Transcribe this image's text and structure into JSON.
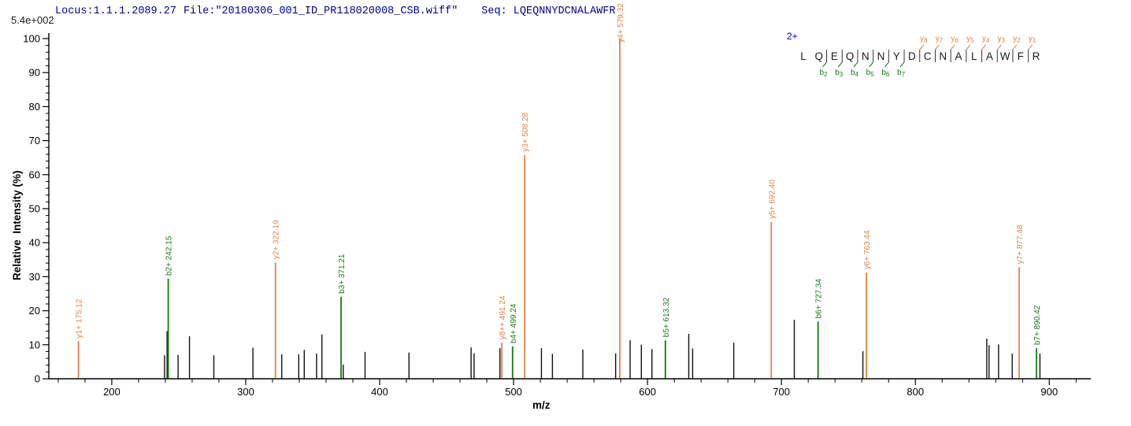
{
  "header": {
    "locus": "Locus:1.1.1.2089.27",
    "file": "File:\"20180306_001_ID_PR118020008_CSB.wiff\"",
    "seq": "Seq: LQEQNNYDCNALAWFR"
  },
  "chart_data": {
    "type": "bar",
    "subtype": "ms2-fragment-spectrum",
    "title": "",
    "xlabel": "m/z",
    "ylabel": "Relative  Intensity (%)",
    "y_scale_note": "5.4e+002",
    "precursor_charge": "2+",
    "x_range": [
      153,
      931
    ],
    "y_range": [
      0,
      100
    ],
    "x_ticks": [
      200,
      300,
      400,
      500,
      600,
      700,
      800,
      900
    ],
    "x_minor_step": 20,
    "x_minor_range": [
      160,
      920
    ],
    "y_ticks": [
      0,
      10,
      20,
      30,
      40,
      50,
      60,
      70,
      80,
      90,
      100
    ],
    "y_minor_step": 2,
    "legend_position": "none",
    "grid": false,
    "colors": {
      "y_ion": "#DE8244",
      "b_ion": "#107C10",
      "unassigned": "#111111",
      "axis": "#000000",
      "header_text": "#00008B",
      "charge_text": "#0000CD",
      "residue_text": "#1a1a1a"
    },
    "peaks": [
      {
        "mz": 175.12,
        "intensity": 11.0,
        "series": "y",
        "label": "y1+ 175.12"
      },
      {
        "mz": 239.4,
        "intensity": 6.9,
        "series": "unassigned",
        "label": null
      },
      {
        "mz": 241.3,
        "intensity": 14.0,
        "series": "unassigned",
        "label": null
      },
      {
        "mz": 242.15,
        "intensity": 29.4,
        "series": "b",
        "label": "b2+ 242.15"
      },
      {
        "mz": 249.5,
        "intensity": 7.0,
        "series": "unassigned",
        "label": null
      },
      {
        "mz": 258.0,
        "intensity": 12.5,
        "series": "unassigned",
        "label": null
      },
      {
        "mz": 276.2,
        "intensity": 6.9,
        "series": "unassigned",
        "label": null
      },
      {
        "mz": 305.4,
        "intensity": 9.1,
        "series": "unassigned",
        "label": null
      },
      {
        "mz": 322.19,
        "intensity": 34.2,
        "series": "y",
        "label": "y2+ 322.19"
      },
      {
        "mz": 326.9,
        "intensity": 7.2,
        "series": "unassigned",
        "label": null
      },
      {
        "mz": 339.6,
        "intensity": 7.2,
        "series": "unassigned",
        "label": null
      },
      {
        "mz": 343.7,
        "intensity": 8.5,
        "series": "unassigned",
        "label": null
      },
      {
        "mz": 352.9,
        "intensity": 7.4,
        "series": "unassigned",
        "label": null
      },
      {
        "mz": 356.9,
        "intensity": 13.0,
        "series": "unassigned",
        "label": null
      },
      {
        "mz": 371.21,
        "intensity": 24.1,
        "series": "b",
        "label": "b3+ 371.21"
      },
      {
        "mz": 372.8,
        "intensity": 4.2,
        "series": "unassigned",
        "label": null
      },
      {
        "mz": 389.1,
        "intensity": 7.9,
        "series": "unassigned",
        "label": null
      },
      {
        "mz": 421.9,
        "intensity": 7.7,
        "series": "unassigned",
        "label": null
      },
      {
        "mz": 468.3,
        "intensity": 9.2,
        "series": "unassigned",
        "label": null
      },
      {
        "mz": 470.5,
        "intensity": 7.5,
        "series": "unassigned",
        "label": null
      },
      {
        "mz": 489.8,
        "intensity": 9.0,
        "series": "unassigned",
        "label": null
      },
      {
        "mz": 491.24,
        "intensity": 10.6,
        "series": "y",
        "label": "y8++ 491.24"
      },
      {
        "mz": 499.24,
        "intensity": 9.5,
        "series": "b",
        "label": "b4+ 499.24"
      },
      {
        "mz": 508.28,
        "intensity": 65.8,
        "series": "y",
        "label": "y3+ 508.28"
      },
      {
        "mz": 520.8,
        "intensity": 9.0,
        "series": "unassigned",
        "label": null
      },
      {
        "mz": 529.0,
        "intensity": 7.3,
        "series": "unassigned",
        "label": null
      },
      {
        "mz": 551.7,
        "intensity": 8.6,
        "series": "unassigned",
        "label": null
      },
      {
        "mz": 576.2,
        "intensity": 7.5,
        "series": "unassigned",
        "label": null
      },
      {
        "mz": 579.32,
        "intensity": 100.0,
        "series": "y",
        "label": "y4+ 579.32"
      },
      {
        "mz": 587.0,
        "intensity": 11.3,
        "series": "unassigned",
        "label": null
      },
      {
        "mz": 595.4,
        "intensity": 10.0,
        "series": "unassigned",
        "label": null
      },
      {
        "mz": 603.3,
        "intensity": 8.7,
        "series": "unassigned",
        "label": null
      },
      {
        "mz": 613.32,
        "intensity": 11.3,
        "series": "b",
        "label": "b5+ 613.32"
      },
      {
        "mz": 630.8,
        "intensity": 13.2,
        "series": "unassigned",
        "label": null
      },
      {
        "mz": 633.7,
        "intensity": 8.9,
        "series": "unassigned",
        "label": null
      },
      {
        "mz": 664.4,
        "intensity": 10.6,
        "series": "unassigned",
        "label": null
      },
      {
        "mz": 692.4,
        "intensity": 46.1,
        "series": "y",
        "label": "y5+ 692.40"
      },
      {
        "mz": 709.6,
        "intensity": 17.3,
        "series": "unassigned",
        "label": null
      },
      {
        "mz": 727.34,
        "intensity": 16.8,
        "series": "b",
        "label": "b6+ 727.34"
      },
      {
        "mz": 760.8,
        "intensity": 8.1,
        "series": "unassigned",
        "label": null
      },
      {
        "mz": 763.44,
        "intensity": 31.2,
        "series": "y",
        "label": "y6+ 763.44"
      },
      {
        "mz": 853.3,
        "intensity": 11.8,
        "series": "unassigned",
        "label": null
      },
      {
        "mz": 855.0,
        "intensity": 9.9,
        "series": "unassigned",
        "label": null
      },
      {
        "mz": 862.1,
        "intensity": 10.1,
        "series": "unassigned",
        "label": null
      },
      {
        "mz": 872.3,
        "intensity": 7.4,
        "series": "unassigned",
        "label": null
      },
      {
        "mz": 877.48,
        "intensity": 32.8,
        "series": "y",
        "label": "y7+ 877.48"
      },
      {
        "mz": 890.42,
        "intensity": 9.0,
        "series": "b",
        "label": "b7+ 890.42"
      },
      {
        "mz": 893.0,
        "intensity": 7.4,
        "series": "unassigned",
        "label": null
      }
    ],
    "peptide": {
      "residues": [
        "L",
        "Q",
        "E",
        "Q",
        "N",
        "N",
        "Y",
        "D",
        "C",
        "N",
        "A",
        "L",
        "A",
        "W",
        "F",
        "R"
      ],
      "b_ions": [
        {
          "name": "b",
          "num": 2,
          "pos": 2
        },
        {
          "name": "b",
          "num": 3,
          "pos": 3
        },
        {
          "name": "b",
          "num": 4,
          "pos": 4
        },
        {
          "name": "b",
          "num": 5,
          "pos": 5
        },
        {
          "name": "b",
          "num": 6,
          "pos": 6
        },
        {
          "name": "b",
          "num": 7,
          "pos": 7
        }
      ],
      "y_ions": [
        {
          "name": "y",
          "num": 8,
          "pos": 8
        },
        {
          "name": "y",
          "num": 7,
          "pos": 7
        },
        {
          "name": "y",
          "num": 6,
          "pos": 6
        },
        {
          "name": "y",
          "num": 5,
          "pos": 5
        },
        {
          "name": "y",
          "num": 4,
          "pos": 4
        },
        {
          "name": "y",
          "num": 3,
          "pos": 3
        },
        {
          "name": "y",
          "num": 2,
          "pos": 2
        },
        {
          "name": "y",
          "num": 1,
          "pos": 1
        }
      ]
    }
  }
}
